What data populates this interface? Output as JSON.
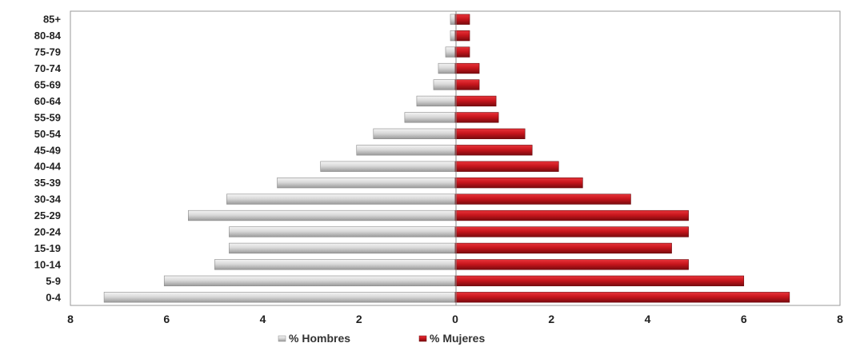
{
  "chart_data": {
    "type": "bar",
    "orientation": "horizontal",
    "subtype": "population-pyramid",
    "categories": [
      "85+",
      "80-84",
      "75-79",
      "70-74",
      "65-69",
      "60-64",
      "55-59",
      "50-54",
      "45-49",
      "40-44",
      "35-39",
      "30-34",
      "25-29",
      "20-24",
      "15-19",
      "10-14",
      "5-9",
      "0-4"
    ],
    "series": [
      {
        "name": "% Hombres",
        "side": "left",
        "color": "#d6d6d6",
        "values": [
          0.1,
          0.1,
          0.2,
          0.35,
          0.45,
          0.8,
          1.05,
          1.7,
          2.05,
          2.8,
          3.7,
          4.75,
          5.55,
          4.7,
          4.7,
          5.0,
          6.05,
          7.3
        ]
      },
      {
        "name": "% Mujeres",
        "side": "right",
        "color": "#c8161d",
        "values": [
          0.3,
          0.3,
          0.3,
          0.5,
          0.5,
          0.85,
          0.9,
          1.45,
          1.6,
          2.15,
          2.65,
          3.65,
          4.85,
          4.85,
          4.5,
          4.85,
          6.0,
          6.95
        ]
      }
    ],
    "xlim": [
      -8,
      8
    ],
    "x_ticks": [
      {
        "value": -8,
        "label": "8"
      },
      {
        "value": -6,
        "label": "6"
      },
      {
        "value": -4,
        "label": "4"
      },
      {
        "value": -2,
        "label": "2"
      },
      {
        "value": 0,
        "label": "0"
      },
      {
        "value": 2,
        "label": "2"
      },
      {
        "value": 4,
        "label": "4"
      },
      {
        "value": 6,
        "label": "6"
      },
      {
        "value": 8,
        "label": "8"
      }
    ],
    "title": "",
    "xlabel": "",
    "ylabel": "",
    "grid": false,
    "legend_position": "bottom",
    "legend": [
      "% Hombres",
      "% Mujeres"
    ]
  }
}
